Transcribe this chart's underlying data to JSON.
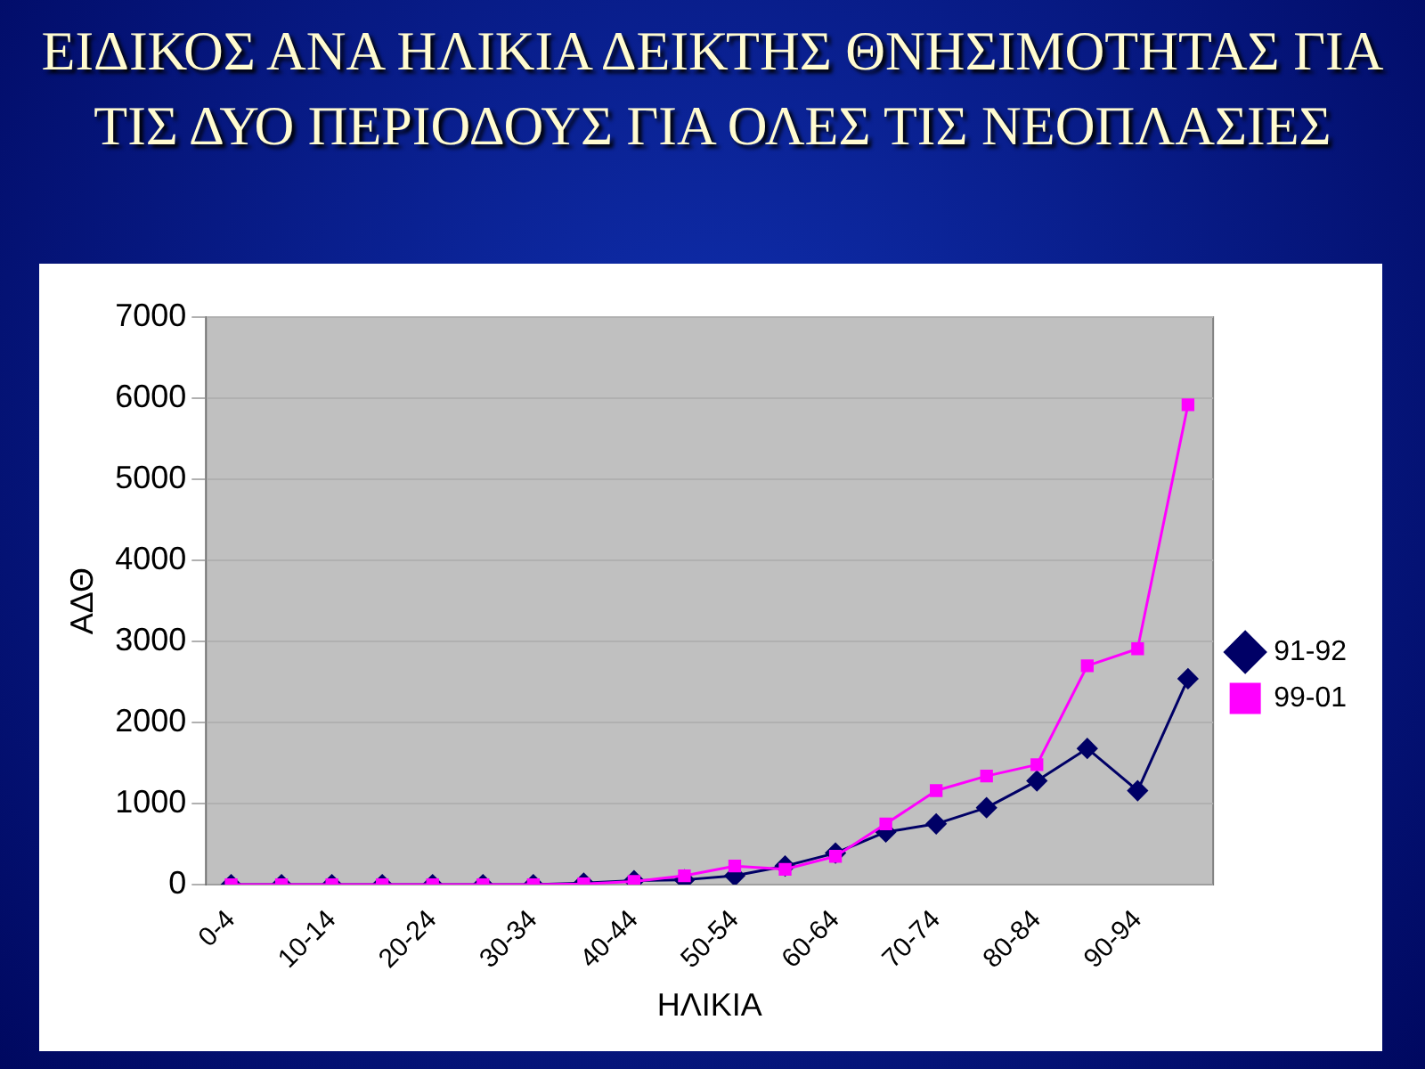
{
  "chart_data": {
    "type": "line",
    "title": "ΕΙΔΙΚΟΣ ΑΝΑ ΗΛΙΚΙΑ ΔΕΙΚΤΗΣ ΘΝΗΣΙΜΟΤΗΤΑΣ ΓΙΑ ΤΙΣ ΔΥΟ ΠΕΡΙΟΔΟΥΣ ΓΙΑ ΟΛΕΣ ΤΙΣ ΝΕΟΠΛΑΣΙΕΣ",
    "xlabel": "ΗΛΙΚΙΑ",
    "ylabel": "ΑΔΘ",
    "categories": [
      "0-4",
      null,
      "10-14",
      null,
      "20-24",
      null,
      "30-34",
      null,
      "40-44",
      null,
      "50-54",
      null,
      "60-64",
      null,
      "70-74",
      null,
      "80-84",
      null,
      "90-94",
      null
    ],
    "series": [
      {
        "name": "91-92",
        "color": "#000066",
        "marker": "diamond",
        "values": [
          0,
          0,
          0,
          0,
          0,
          0,
          0,
          20,
          50,
          60,
          110,
          230,
          390,
          650,
          750,
          950,
          1280,
          1680,
          1160,
          2540
        ]
      },
      {
        "name": "99-01",
        "color": "#ff00ff",
        "marker": "square",
        "values": [
          0,
          0,
          0,
          0,
          0,
          0,
          0,
          10,
          40,
          110,
          230,
          190,
          350,
          750,
          1160,
          1340,
          1480,
          2700,
          2910,
          5920
        ]
      }
    ],
    "ylim": [
      0,
      7000
    ],
    "yticks": [
      0,
      1000,
      2000,
      3000,
      4000,
      5000,
      6000,
      7000
    ],
    "grid": "y",
    "legend": "right",
    "line_style": "solid"
  }
}
